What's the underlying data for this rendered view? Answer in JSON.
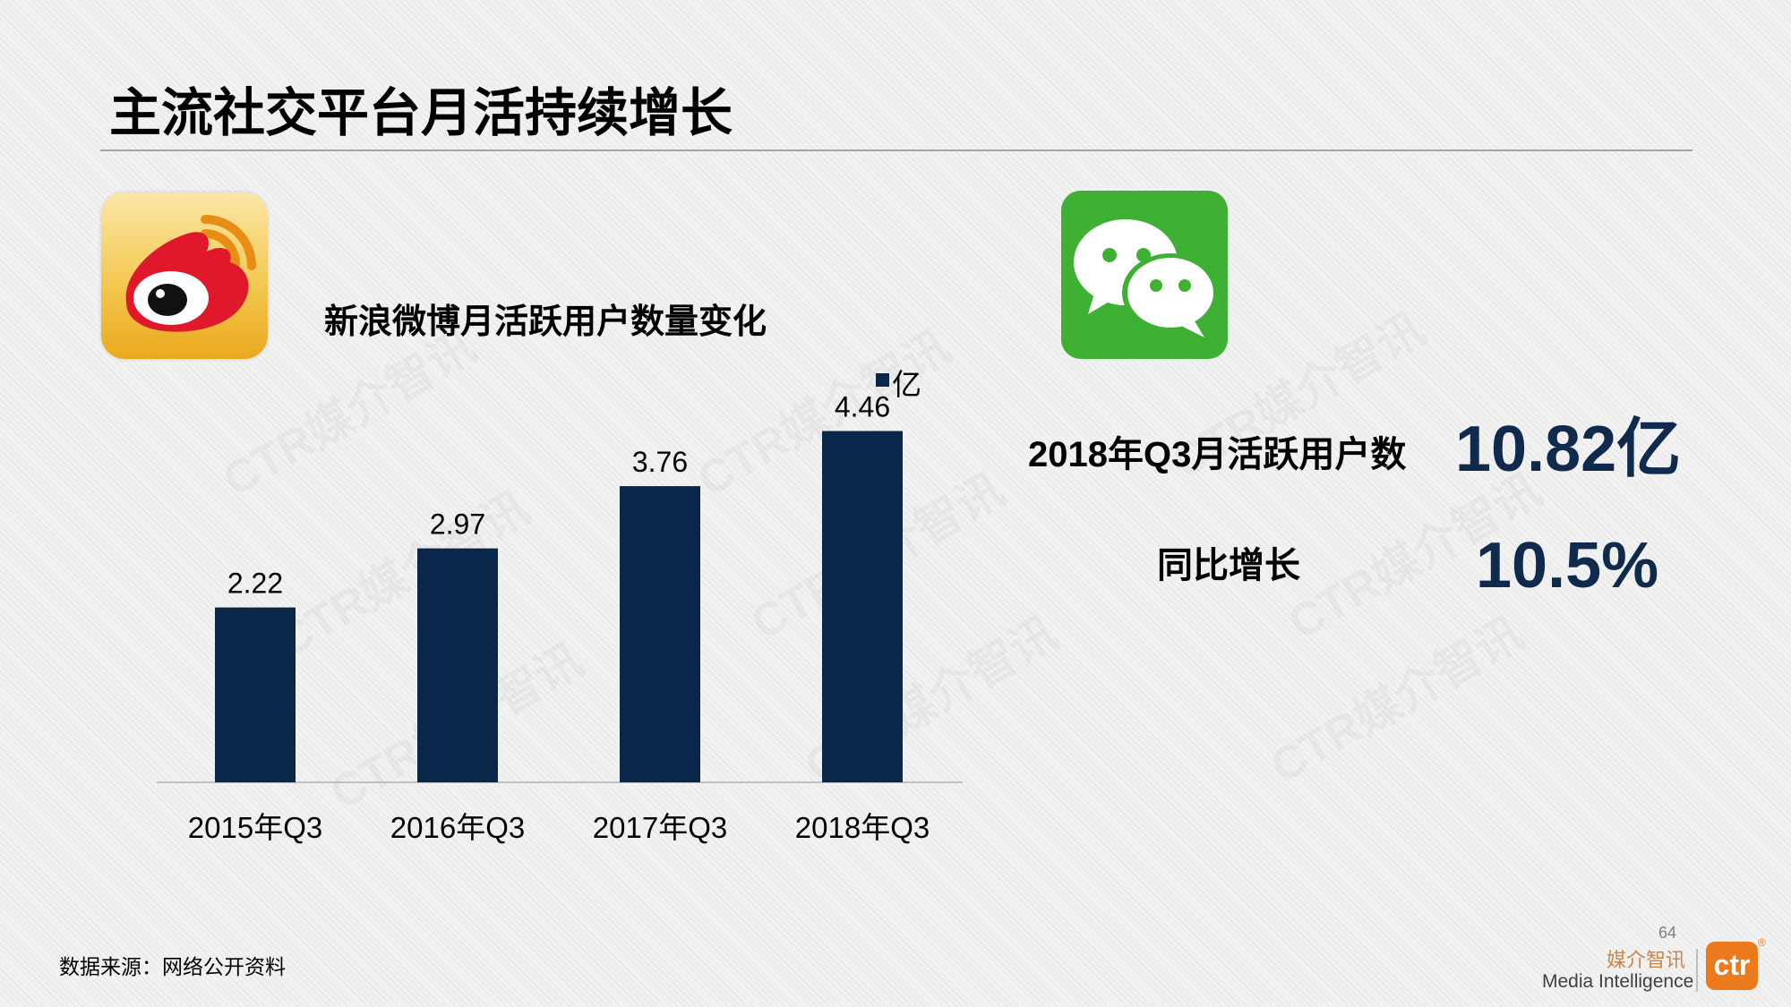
{
  "title": "主流社交平台月活持续增长",
  "watermark_text": "CTR媒介智讯",
  "weibo": {
    "icon": "weibo-logo-icon",
    "chart_title": "新浪微博月活跃用户数量变化",
    "legend_label": "亿"
  },
  "wechat": {
    "icon": "wechat-logo-icon",
    "mau_label": "2018年Q3月活跃用户数",
    "mau_value": "10.82亿",
    "yoy_label": "同比增长",
    "yoy_value": "10.5%"
  },
  "chart_data": {
    "type": "bar",
    "title": "新浪微博月活跃用户数量变化",
    "categories": [
      "2015年Q3",
      "2016年Q3",
      "2017年Q3",
      "2018年Q3"
    ],
    "series": [
      {
        "name": "亿",
        "values": [
          2.22,
          2.97,
          3.76,
          4.46
        ],
        "color": "#0a2648"
      }
    ],
    "data_labels": [
      "2.22",
      "2.97",
      "3.76",
      "4.46"
    ],
    "ylim": [
      0,
      5
    ],
    "grid": false,
    "legend_position": "top-right"
  },
  "footer": {
    "source": "数据来源：网络公开资料",
    "page_number": "64",
    "brand_cn": "媒介智讯",
    "brand_en": "Media Intelligence",
    "brand_badge": "ctr",
    "brand_mark": "®"
  },
  "colors": {
    "bar": "#0a2648",
    "highlight_value": "#0f2a4d",
    "wechat_green": "#3eb034",
    "weibo_red": "#e0182c",
    "brand_orange": "#ec7a1c"
  }
}
